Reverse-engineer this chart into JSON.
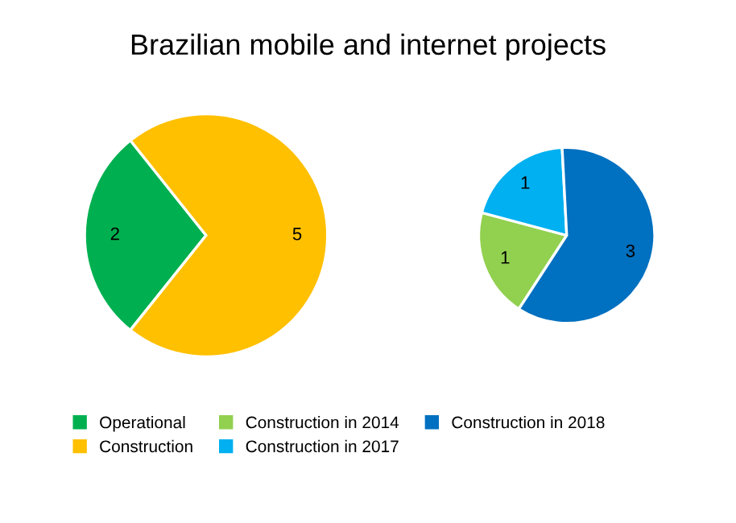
{
  "chart_data": [
    {
      "type": "pie",
      "title": "Brazilian mobile and internet projects",
      "categories": [
        "Operational",
        "Construction"
      ],
      "values": [
        2,
        5
      ],
      "colors": [
        "#00b050",
        "#ffc000"
      ],
      "data_labels": true,
      "legend": "bottom"
    },
    {
      "type": "pie",
      "categories": [
        "Construction in 2014",
        "Construction in 2017",
        "Construction in 2018"
      ],
      "values": [
        1,
        1,
        3
      ],
      "colors": [
        "#92d050",
        "#00b0f0",
        "#0070c0"
      ],
      "data_labels": true,
      "legend": "bottom"
    }
  ]
}
